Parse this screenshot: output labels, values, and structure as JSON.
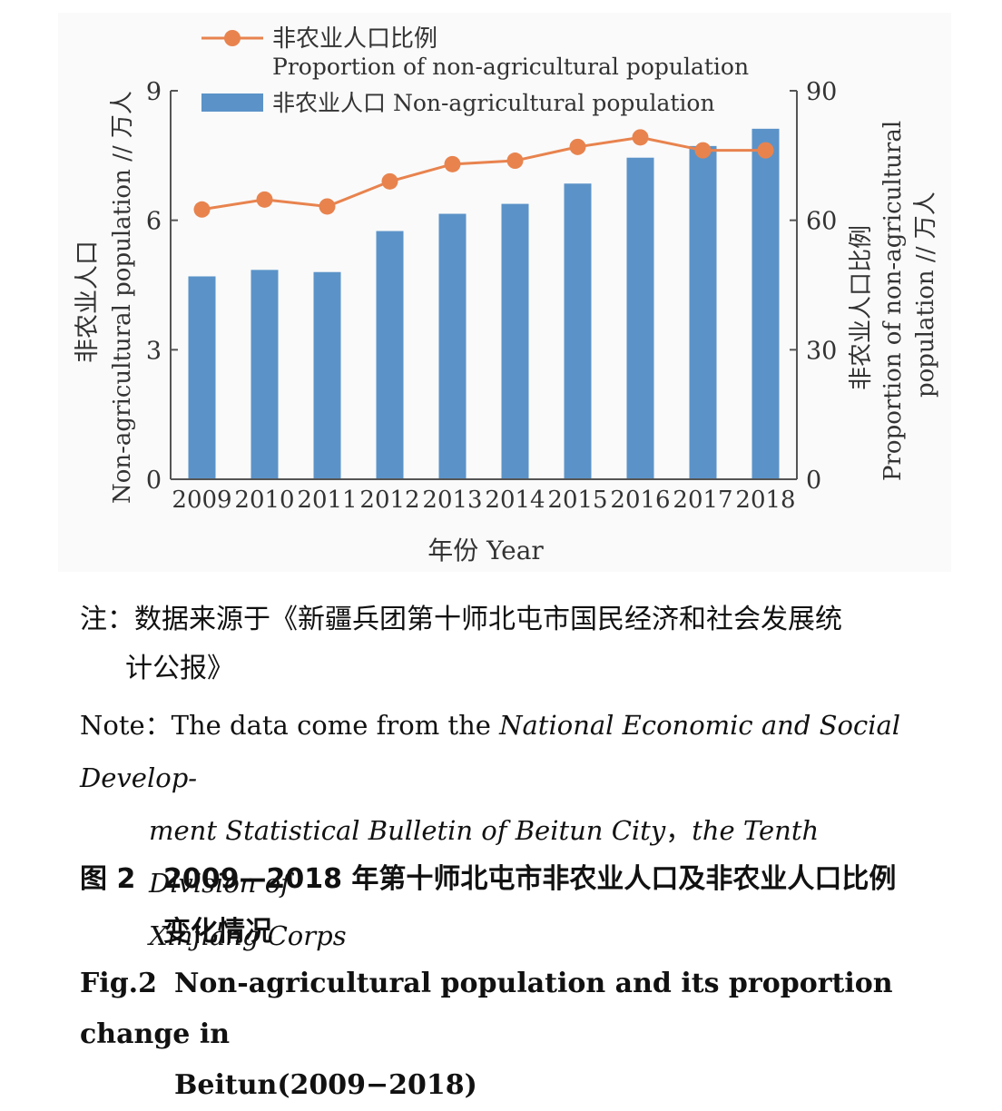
{
  "chart_data": {
    "type": "bar",
    "categories": [
      "2009",
      "2010",
      "2011",
      "2012",
      "2013",
      "2014",
      "2015",
      "2016",
      "2017",
      "2018"
    ],
    "series": [
      {
        "name": "非农业人口 Non-agricultural population",
        "type": "bar",
        "axis": "left",
        "values": [
          4.7,
          4.85,
          4.8,
          5.75,
          6.15,
          6.38,
          6.85,
          7.45,
          7.72,
          8.12
        ],
        "color": "#5b93c8"
      },
      {
        "name": "非农业人口比例",
        "name_en": "Proportion of non-agricultural population",
        "type": "line",
        "axis": "right",
        "values": [
          62.5,
          64.8,
          63.2,
          69.0,
          73.0,
          73.8,
          77.0,
          79.2,
          76.2,
          76.2
        ],
        "color": "#e8834e"
      }
    ],
    "ylim": [
      0,
      9
    ],
    "yticks": [
      "0",
      "3",
      "6",
      "9"
    ],
    "y2lim": [
      0,
      90
    ],
    "y2ticks": [
      "0",
      "30",
      "60",
      "90"
    ],
    "xlabel": "年份 Year",
    "ylabel_cn": "非农业人口",
    "ylabel_en": "Non-agricultural population // 万人",
    "y2label_cn": "非农业人口比例",
    "y2label_en_1": "Proportion of non-agricultural",
    "y2label_en_2": "population // 万人",
    "legend_position": "top-left"
  },
  "caption": {
    "note_cn_1": "注：数据来源于《新疆兵团第十师北屯市国民经济和社会发展统",
    "note_cn_2": "计公报》",
    "note_en_prefix": "Note：The data come from the ",
    "note_en_ital_1": "National Economic and Social Develop-",
    "note_en_ital_2": "ment Statistical Bulletin of Beitun City",
    "note_en_comma": "，",
    "note_en_ital_3": "the Tenth Division of",
    "note_en_ital_4": "Xinjiang Corps",
    "fig_cn_label": "图 2",
    "fig_cn_title_1": "2009—2018 年第十师北屯市非农业人口及非农业人口比例",
    "fig_cn_title_2": "变化情况",
    "fig_en_label": "Fig.2",
    "fig_en_title_1": "Non-agricultural population and its proportion change in",
    "fig_en_title_2": "Beitun(2009−2018)"
  }
}
